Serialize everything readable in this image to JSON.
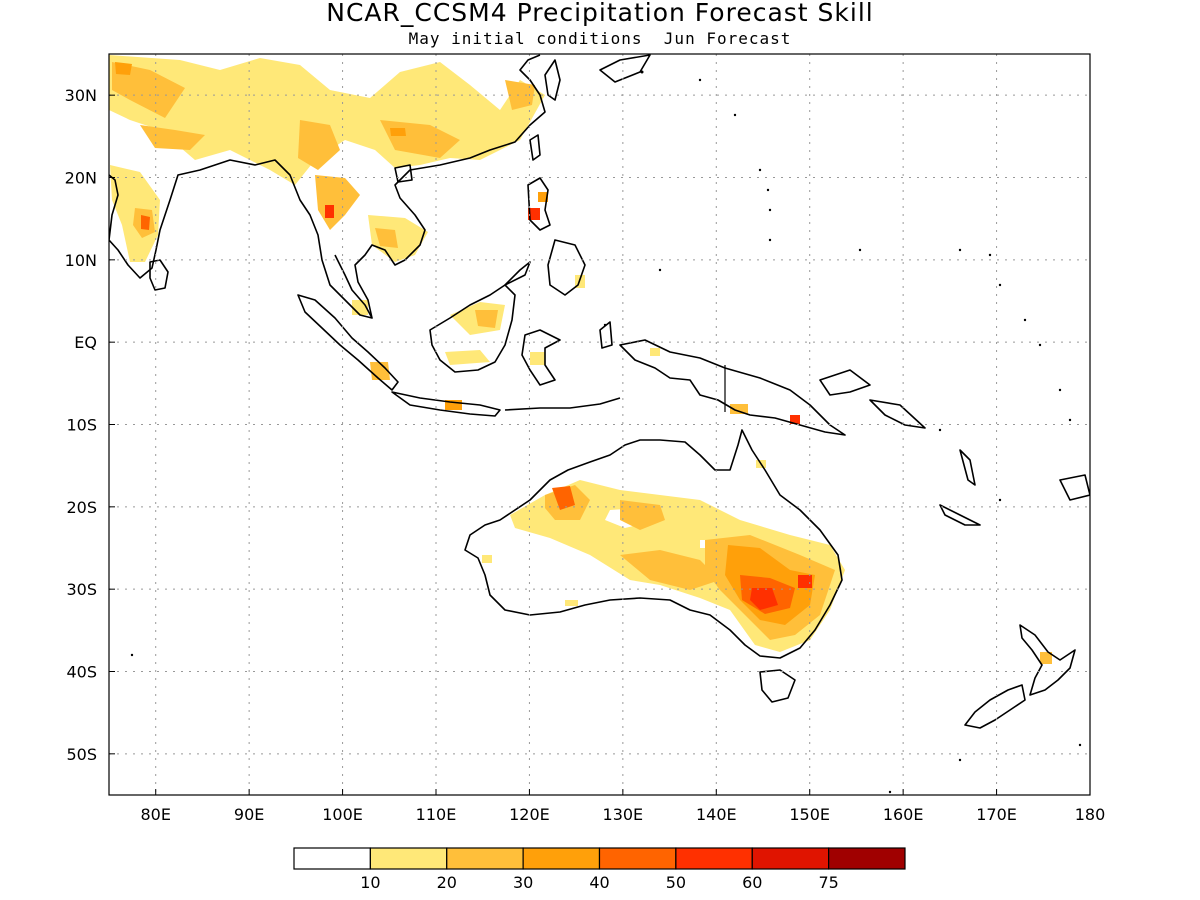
{
  "title": "NCAR_CCSM4 Precipitation Forecast Skill",
  "subtitle": "May initial conditions  Jun Forecast",
  "map": {
    "lon_range": [
      75,
      180
    ],
    "lat_range": [
      -55,
      35
    ],
    "lon_ticks": [
      {
        "value": 80,
        "label": "80E"
      },
      {
        "value": 90,
        "label": "90E"
      },
      {
        "value": 100,
        "label": "100E"
      },
      {
        "value": 110,
        "label": "110E"
      },
      {
        "value": 120,
        "label": "120E"
      },
      {
        "value": 130,
        "label": "130E"
      },
      {
        "value": 140,
        "label": "140E"
      },
      {
        "value": 150,
        "label": "150E"
      },
      {
        "value": 160,
        "label": "160E"
      },
      {
        "value": 170,
        "label": "170E"
      },
      {
        "value": 180,
        "label": "180"
      }
    ],
    "lat_ticks": [
      {
        "value": 30,
        "label": "30N"
      },
      {
        "value": 20,
        "label": "20N"
      },
      {
        "value": 10,
        "label": "10N"
      },
      {
        "value": 0,
        "label": "EQ"
      },
      {
        "value": -10,
        "label": "10S"
      },
      {
        "value": -20,
        "label": "20S"
      },
      {
        "value": -30,
        "label": "30S"
      },
      {
        "value": -40,
        "label": "40S"
      },
      {
        "value": -50,
        "label": "50S"
      }
    ],
    "grid": true
  },
  "legend": {
    "colors": [
      "#ffffff",
      "#ffe878",
      "#ffbf3a",
      "#ffa00a",
      "#ff6400",
      "#ff3000",
      "#e01400",
      "#a00000"
    ],
    "labels": [
      "10",
      "20",
      "30",
      "40",
      "50",
      "60",
      "75"
    ]
  },
  "colors": {
    "c1": "#ffe878",
    "c2": "#ffbf3a",
    "c3": "#ffa00a",
    "c4": "#ff6400",
    "c5": "#ff3000",
    "c6": "#e01400"
  }
}
